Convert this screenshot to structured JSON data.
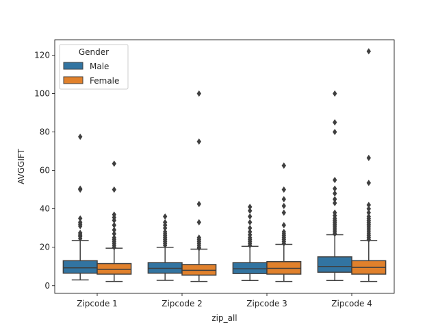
{
  "chart_data": {
    "type": "boxplot",
    "title": "",
    "xlabel": "zip_all",
    "ylabel": "AVGGIFT",
    "ylim": [
      -4,
      128
    ],
    "yticks": [
      0,
      20,
      40,
      60,
      80,
      100,
      120
    ],
    "grid": false,
    "categories": [
      "Zipcode 1",
      "Zipcode 2",
      "Zipcode 3",
      "Zipcode 4"
    ],
    "legend": {
      "title": "Gender",
      "placement": "upper-left"
    },
    "series": [
      {
        "name": "Male",
        "color": "#3274a1",
        "boxes": [
          {
            "whisker_low": 3,
            "q1": 6.5,
            "median": 9.3,
            "q3": 13,
            "whisker_high": 23.5,
            "outliers": [
              24.5,
              25.5,
              26,
              26.8,
              27.5,
              31,
              32,
              33,
              35,
              50,
              50.5,
              77.5
            ]
          },
          {
            "whisker_low": 2.8,
            "q1": 6.5,
            "median": 9,
            "q3": 12,
            "whisker_high": 20,
            "outliers": [
              21,
              22,
              23,
              24,
              25,
              26,
              27,
              28,
              30,
              31.5,
              33,
              36
            ]
          },
          {
            "whisker_low": 2.7,
            "q1": 6.3,
            "median": 8.8,
            "q3": 12,
            "whisker_high": 20.5,
            "outliers": [
              21,
              22,
              23,
              24,
              25,
              26.5,
              28,
              30,
              33,
              36,
              39,
              41
            ]
          },
          {
            "whisker_low": 2.7,
            "q1": 7,
            "median": 10,
            "q3": 15,
            "whisker_high": 26.5,
            "outliers": [
              27,
              28,
              29,
              30,
              31,
              32,
              33,
              34,
              35,
              36.5,
              38,
              43,
              45,
              48,
              50.5,
              55,
              80,
              85,
              100
            ]
          }
        ]
      },
      {
        "name": "Female",
        "color": "#e1812c",
        "boxes": [
          {
            "whisker_low": 2.2,
            "q1": 6,
            "median": 8.5,
            "q3": 11.5,
            "whisker_high": 19.5,
            "outliers": [
              20,
              21,
              22,
              23,
              24,
              25,
              27,
              29,
              31.5,
              34,
              35.5,
              37,
              50,
              63.5
            ]
          },
          {
            "whisker_low": 2.2,
            "q1": 5.5,
            "median": 8,
            "q3": 11,
            "whisker_high": 19,
            "outliers": [
              19.5,
              20,
              21,
              22,
              23,
              24,
              25,
              33,
              42.5,
              75,
              100
            ]
          },
          {
            "whisker_low": 2.2,
            "q1": 6,
            "median": 9,
            "q3": 12.5,
            "whisker_high": 21.5,
            "outliers": [
              22,
              23,
              24,
              25,
              26,
              27,
              28,
              31.5,
              38,
              41.5,
              45,
              50,
              62.5
            ]
          },
          {
            "whisker_low": 2.2,
            "q1": 6,
            "median": 9.5,
            "q3": 13,
            "whisker_high": 23.5,
            "outliers": [
              24,
              25,
              26,
              27,
              28,
              29,
              30,
              31,
              32,
              33,
              34,
              35,
              36,
              38,
              40,
              42,
              53.5,
              66.5,
              122
            ]
          }
        ]
      }
    ]
  }
}
